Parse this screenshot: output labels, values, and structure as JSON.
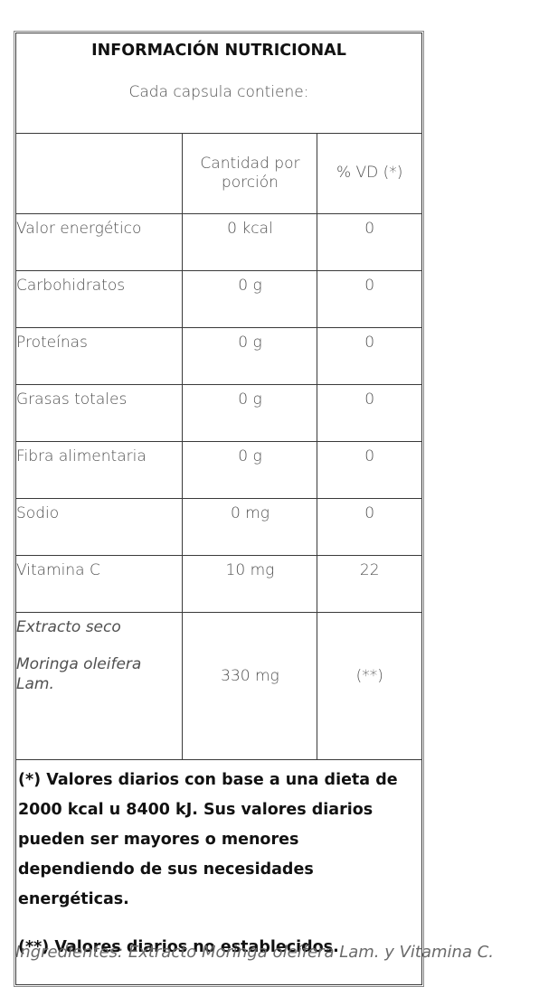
{
  "table": {
    "title": "INFORMACIÓN NUTRICIONAL",
    "subtitle": "Cada capsula contiene:",
    "header": {
      "col1": "",
      "col2": "Cantidad por porción",
      "col3": "% VD (*)"
    },
    "rows": [
      {
        "label": "Valor energético",
        "amount": "0 kcal",
        "vd": "0"
      },
      {
        "label": "Carbohidratos",
        "amount": "0 g",
        "vd": "0"
      },
      {
        "label": "Proteínas",
        "amount": "0 g",
        "vd": "0"
      },
      {
        "label": "Grasas totales",
        "amount": "0 g",
        "vd": "0"
      },
      {
        "label": "Fibra alimentaria",
        "amount": "0 g",
        "vd": "0"
      },
      {
        "label": "Sodio",
        "amount": "0 mg",
        "vd": "0"
      },
      {
        "label": "Vitamina C",
        "amount": "10 mg",
        "vd": "22"
      }
    ],
    "extract": {
      "label_line1": "Extracto seco",
      "label_line2": "Moringa oleifera Lam.",
      "amount": "330 mg",
      "vd": "(**)"
    },
    "notes": {
      "note1": "(*) Valores diarios con base a una dieta de 2000 kcal u 8400 kJ. Sus valores diarios pueden ser mayores o menores dependiendo de sus necesidades energéticas.",
      "note2": "(**) Valores diarios no establecidos."
    }
  },
  "ingredients": "Ingredientes: Extracto Moringa oleífera Lam. y Vitamina C."
}
